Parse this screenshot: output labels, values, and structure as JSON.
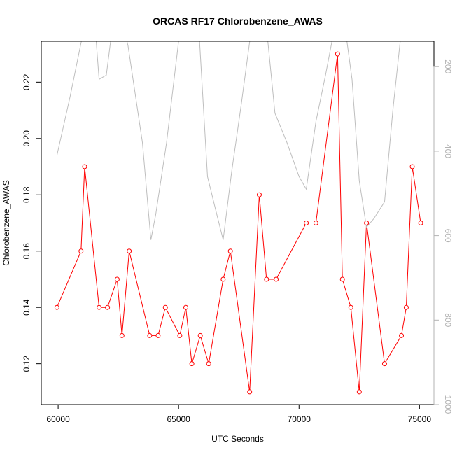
{
  "chart_data": {
    "type": "line",
    "title": "ORCAS RF17 Chlorobenzene_AWAS",
    "xlabel": "UTC Seconds",
    "ylabel": "Chlorobenzene_AWAS",
    "xlim": [
      59300,
      75600
    ],
    "ylim": [
      0.1055,
      0.2345
    ],
    "x_ticks": [
      60000,
      65000,
      70000,
      75000
    ],
    "y_ticks": [
      0.12,
      0.14,
      0.16,
      0.18,
      0.2,
      0.22
    ],
    "y_tick_labels": [
      "0.12",
      "0.14",
      "0.16",
      "0.18",
      "0.20",
      "0.22"
    ],
    "right_axis": {
      "ylim": [
        1000,
        140
      ],
      "ticks": [
        200,
        400,
        600,
        800,
        1000
      ],
      "tick_labels": [
        "200",
        "400",
        "600",
        "800",
        "1000"
      ],
      "color": "#b3b3b3"
    },
    "series": [
      {
        "color": "#ff0000",
        "axis": "left",
        "marker": "open-circle",
        "x": [
          59950,
          60950,
          61100,
          61700,
          62050,
          62450,
          62650,
          62950,
          63800,
          64150,
          64450,
          65050,
          65300,
          65550,
          65900,
          66250,
          66850,
          67150,
          67950,
          68350,
          68650,
          69050,
          70300,
          70700,
          71600,
          71800,
          72150,
          72500,
          72800,
          73550,
          74250,
          74450,
          74700,
          75050
        ],
        "values": [
          0.14,
          0.16,
          0.19,
          0.14,
          0.14,
          0.15,
          0.13,
          0.16,
          0.13,
          0.13,
          0.14,
          0.13,
          0.14,
          0.12,
          0.13,
          0.12,
          0.15,
          0.16,
          0.11,
          0.18,
          0.15,
          0.15,
          0.17,
          0.17,
          0.23,
          0.15,
          0.14,
          0.11,
          0.17,
          0.12,
          0.13,
          0.14,
          0.19,
          0.17
        ]
      },
      {
        "color": "#bebebe",
        "axis": "right",
        "marker": "none",
        "x": [
          59950,
          60500,
          61000,
          61500,
          61700,
          62000,
          62200,
          62500,
          62900,
          63500,
          63850,
          64050,
          64500,
          65000,
          65400,
          65850,
          66200,
          66500,
          66850,
          67200,
          67600,
          68000,
          68200,
          68600,
          69000,
          69500,
          70000,
          70300,
          70700,
          71100,
          71400,
          71600,
          71800,
          72200,
          72500,
          72800,
          73100,
          73550,
          73900,
          74200,
          74500,
          74700,
          75050
        ],
        "values": [
          410,
          270,
          130,
          80,
          230,
          220,
          130,
          60,
          150,
          380,
          610,
          550,
          380,
          140,
          50,
          120,
          460,
          530,
          610,
          450,
          290,
          120,
          50,
          80,
          310,
          380,
          460,
          490,
          330,
          220,
          130,
          80,
          60,
          230,
          470,
          580,
          560,
          520,
          300,
          140,
          60,
          40,
          20
        ]
      }
    ]
  }
}
